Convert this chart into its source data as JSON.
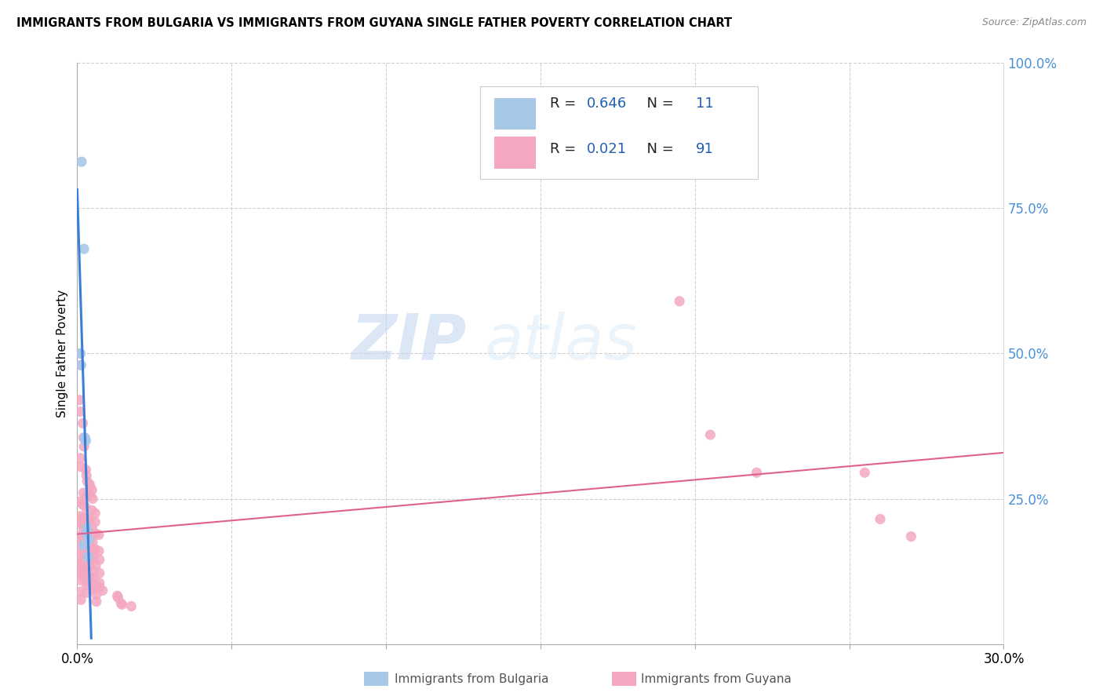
{
  "title": "IMMIGRANTS FROM BULGARIA VS IMMIGRANTS FROM GUYANA SINGLE FATHER POVERTY CORRELATION CHART",
  "source": "Source: ZipAtlas.com",
  "ylabel": "Single Father Poverty",
  "legend_label1": "Immigrants from Bulgaria",
  "legend_label2": "Immigrants from Guyana",
  "r1": "0.646",
  "n1": "11",
  "r2": "0.021",
  "n2": "91",
  "color_bulgaria": "#a8c8e8",
  "color_guyana": "#f4a8c0",
  "trendline_bulgaria": "#3a7fd5",
  "trendline_guyana": "#e06090",
  "trendline_bulgaria_ext": "#b8d4f0",
  "watermark_zip": "ZIP",
  "watermark_atlas": "atlas",
  "xmax": 0.3,
  "ymax": 1.0,
  "bulgaria_points": [
    [
      0.0014,
      0.83
    ],
    [
      0.0022,
      0.68
    ],
    [
      0.001,
      0.5
    ],
    [
      0.0012,
      0.48
    ],
    [
      0.0028,
      0.35
    ],
    [
      0.0025,
      0.355
    ],
    [
      0.0032,
      0.2
    ],
    [
      0.003,
      0.19
    ],
    [
      0.0038,
      0.18
    ],
    [
      0.002,
      0.17
    ],
    [
      0.0035,
      0.15
    ]
  ],
  "guyana_points": [
    [
      0.001,
      0.5
    ],
    [
      0.0012,
      0.48
    ],
    [
      0.0008,
      0.42
    ],
    [
      0.001,
      0.4
    ],
    [
      0.0018,
      0.38
    ],
    [
      0.002,
      0.355
    ],
    [
      0.0022,
      0.34
    ],
    [
      0.001,
      0.32
    ],
    [
      0.0012,
      0.305
    ],
    [
      0.0028,
      0.3
    ],
    [
      0.003,
      0.29
    ],
    [
      0.0032,
      0.28
    ],
    [
      0.004,
      0.275
    ],
    [
      0.0042,
      0.27
    ],
    [
      0.0048,
      0.265
    ],
    [
      0.002,
      0.26
    ],
    [
      0.003,
      0.255
    ],
    [
      0.0042,
      0.255
    ],
    [
      0.005,
      0.25
    ],
    [
      0.0008,
      0.245
    ],
    [
      0.0018,
      0.24
    ],
    [
      0.0028,
      0.235
    ],
    [
      0.0048,
      0.23
    ],
    [
      0.0058,
      0.225
    ],
    [
      0.001,
      0.22
    ],
    [
      0.002,
      0.218
    ],
    [
      0.003,
      0.215
    ],
    [
      0.004,
      0.215
    ],
    [
      0.0058,
      0.21
    ],
    [
      0.001,
      0.208
    ],
    [
      0.0018,
      0.205
    ],
    [
      0.003,
      0.2
    ],
    [
      0.0048,
      0.2
    ],
    [
      0.002,
      0.198
    ],
    [
      0.0032,
      0.195
    ],
    [
      0.004,
      0.193
    ],
    [
      0.006,
      0.19
    ],
    [
      0.007,
      0.188
    ],
    [
      0.0008,
      0.186
    ],
    [
      0.0018,
      0.183
    ],
    [
      0.003,
      0.18
    ],
    [
      0.004,
      0.178
    ],
    [
      0.005,
      0.175
    ],
    [
      0.001,
      0.172
    ],
    [
      0.002,
      0.17
    ],
    [
      0.003,
      0.168
    ],
    [
      0.0042,
      0.165
    ],
    [
      0.0058,
      0.163
    ],
    [
      0.007,
      0.16
    ],
    [
      0.001,
      0.158
    ],
    [
      0.002,
      0.155
    ],
    [
      0.0035,
      0.153
    ],
    [
      0.0042,
      0.15
    ],
    [
      0.0052,
      0.148
    ],
    [
      0.0072,
      0.145
    ],
    [
      0.0008,
      0.142
    ],
    [
      0.0018,
      0.14
    ],
    [
      0.004,
      0.137
    ],
    [
      0.006,
      0.135
    ],
    [
      0.001,
      0.132
    ],
    [
      0.002,
      0.13
    ],
    [
      0.0032,
      0.128
    ],
    [
      0.0052,
      0.125
    ],
    [
      0.0072,
      0.122
    ],
    [
      0.001,
      0.12
    ],
    [
      0.002,
      0.118
    ],
    [
      0.0042,
      0.115
    ],
    [
      0.0052,
      0.113
    ],
    [
      0.001,
      0.11
    ],
    [
      0.003,
      0.108
    ],
    [
      0.0072,
      0.105
    ],
    [
      0.003,
      0.102
    ],
    [
      0.0052,
      0.1
    ],
    [
      0.0072,
      0.098
    ],
    [
      0.0052,
      0.095
    ],
    [
      0.0082,
      0.092
    ],
    [
      0.001,
      0.09
    ],
    [
      0.003,
      0.088
    ],
    [
      0.0062,
      0.085
    ],
    [
      0.013,
      0.083
    ],
    [
      0.0132,
      0.08
    ],
    [
      0.0012,
      0.076
    ],
    [
      0.0062,
      0.073
    ],
    [
      0.0142,
      0.07
    ],
    [
      0.0145,
      0.068
    ],
    [
      0.0175,
      0.065
    ],
    [
      0.195,
      0.59
    ],
    [
      0.205,
      0.36
    ],
    [
      0.22,
      0.295
    ],
    [
      0.255,
      0.295
    ],
    [
      0.26,
      0.215
    ],
    [
      0.27,
      0.185
    ]
  ]
}
